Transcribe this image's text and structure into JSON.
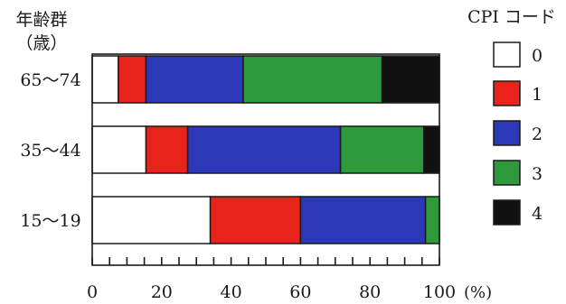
{
  "chart_data": {
    "type": "bar",
    "orientation": "horizontal",
    "stacked": true,
    "y_title_line1": "年齢群",
    "y_title_line2": "（歳）",
    "categories": [
      "65～74",
      "35～44",
      "15～19"
    ],
    "series": [
      {
        "name": "0",
        "color": "#ffffff",
        "values": [
          7.5,
          15.5,
          34
        ]
      },
      {
        "name": "1",
        "color": "#e8231c",
        "values": [
          8,
          12,
          26
        ]
      },
      {
        "name": "2",
        "color": "#2b38b8",
        "values": [
          28,
          44,
          36
        ]
      },
      {
        "name": "3",
        "color": "#2e9a3c",
        "values": [
          40,
          24,
          4
        ]
      },
      {
        "name": "4",
        "color": "#111111",
        "values": [
          16.5,
          4.5,
          0
        ]
      }
    ],
    "xlim": [
      0,
      100
    ],
    "x_ticks": [
      "0",
      "20",
      "40",
      "60",
      "80",
      "100"
    ],
    "x_unit": "(%)",
    "legend_title": "CPI コード",
    "legend_position": "right"
  }
}
